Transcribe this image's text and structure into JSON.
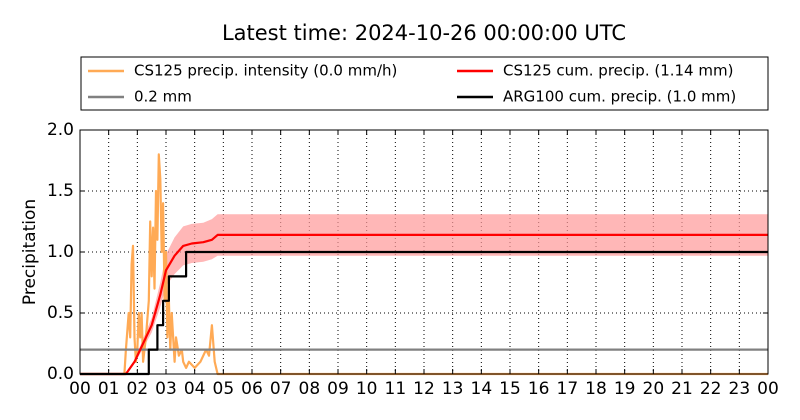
{
  "chart_data": {
    "type": "line",
    "title": "Latest time: 2024-10-26 00:00:00 UTC",
    "y_label": "Precipitation",
    "xlim": [
      0,
      24
    ],
    "xticks": [
      {
        "value": 0,
        "label": "00"
      },
      {
        "value": 1,
        "label": "01"
      },
      {
        "value": 2,
        "label": "02"
      },
      {
        "value": 3,
        "label": "03"
      },
      {
        "value": 4,
        "label": "04"
      },
      {
        "value": 5,
        "label": "05"
      },
      {
        "value": 6,
        "label": "06"
      },
      {
        "value": 7,
        "label": "07"
      },
      {
        "value": 8,
        "label": "08"
      },
      {
        "value": 9,
        "label": "09"
      },
      10,
      11,
      12,
      13,
      14,
      15,
      16,
      17,
      18,
      19,
      20,
      21,
      22,
      23,
      {
        "value": 24,
        "label": "00"
      }
    ],
    "ylim": [
      0,
      2
    ],
    "yticks": [
      {
        "value": 0,
        "label": "0.0"
      },
      0.5,
      {
        "value": 1,
        "label": "1.0"
      },
      1.5,
      {
        "value": 2,
        "label": "2.0"
      }
    ],
    "grid": true,
    "series": [
      {
        "name": "CS125 precip. intensity (0.0 mm/h)",
        "color": "#ffaa55",
        "x": [
          0,
          1.55,
          1.6,
          1.7,
          1.75,
          1.8,
          1.85,
          1.9,
          1.95,
          2.0,
          2.05,
          2.1,
          2.15,
          2.2,
          2.3,
          2.4,
          2.45,
          2.5,
          2.55,
          2.6,
          2.65,
          2.7,
          2.75,
          2.8,
          2.85,
          2.9,
          2.95,
          3.0,
          3.05,
          3.1,
          3.15,
          3.2,
          3.3,
          3.35,
          3.45,
          3.55,
          3.6,
          3.7,
          3.8,
          4.0,
          4.2,
          4.4,
          4.5,
          4.6,
          4.7,
          4.8,
          24
        ],
        "values": [
          0,
          0,
          0.2,
          0.5,
          0.3,
          0.9,
          1.05,
          0.3,
          0.1,
          0.2,
          0.5,
          0.3,
          0.5,
          0.1,
          0.3,
          0.6,
          1.25,
          0.8,
          1.2,
          0.7,
          1.5,
          1.1,
          1.8,
          1.6,
          1.0,
          1.4,
          0.6,
          1.0,
          0.3,
          0.6,
          0.2,
          0.5,
          0.1,
          0.3,
          0.15,
          0.2,
          0.1,
          0.05,
          0.1,
          0.05,
          0.1,
          0.2,
          0.15,
          0.4,
          0.1,
          0,
          0
        ]
      },
      {
        "name": "0.2 mm",
        "color": "#808080",
        "x": [
          0,
          24
        ],
        "values": [
          0.2,
          0.2
        ]
      },
      {
        "name": "CS125 cum. precip. (1.14 mm)",
        "color": "#ff0000",
        "band_color": "#ff9999",
        "x": [
          0,
          1.6,
          1.9,
          2.2,
          2.5,
          2.8,
          3.0,
          3.3,
          3.6,
          3.9,
          4.3,
          4.6,
          4.8,
          24
        ],
        "values": [
          0,
          0,
          0.1,
          0.25,
          0.4,
          0.65,
          0.85,
          0.97,
          1.05,
          1.07,
          1.08,
          1.1,
          1.14,
          1.14
        ],
        "band_upper": [
          0,
          0,
          0.115,
          0.29,
          0.46,
          0.75,
          0.98,
          1.12,
          1.21,
          1.23,
          1.24,
          1.27,
          1.31,
          1.31
        ],
        "band_lower": [
          0,
          0,
          0.085,
          0.21,
          0.34,
          0.55,
          0.72,
          0.82,
          0.89,
          0.91,
          0.92,
          0.94,
          0.97,
          0.97
        ]
      },
      {
        "name": "ARG100 cum. precip. (1.0 mm)",
        "color": "#000000",
        "x": [
          0,
          2.4,
          2.4,
          2.7,
          2.7,
          2.9,
          2.9,
          3.1,
          3.1,
          3.7,
          3.7,
          24
        ],
        "values": [
          0,
          0,
          0.2,
          0.2,
          0.4,
          0.4,
          0.6,
          0.6,
          0.8,
          0.8,
          1.0,
          1.0
        ]
      }
    ]
  }
}
